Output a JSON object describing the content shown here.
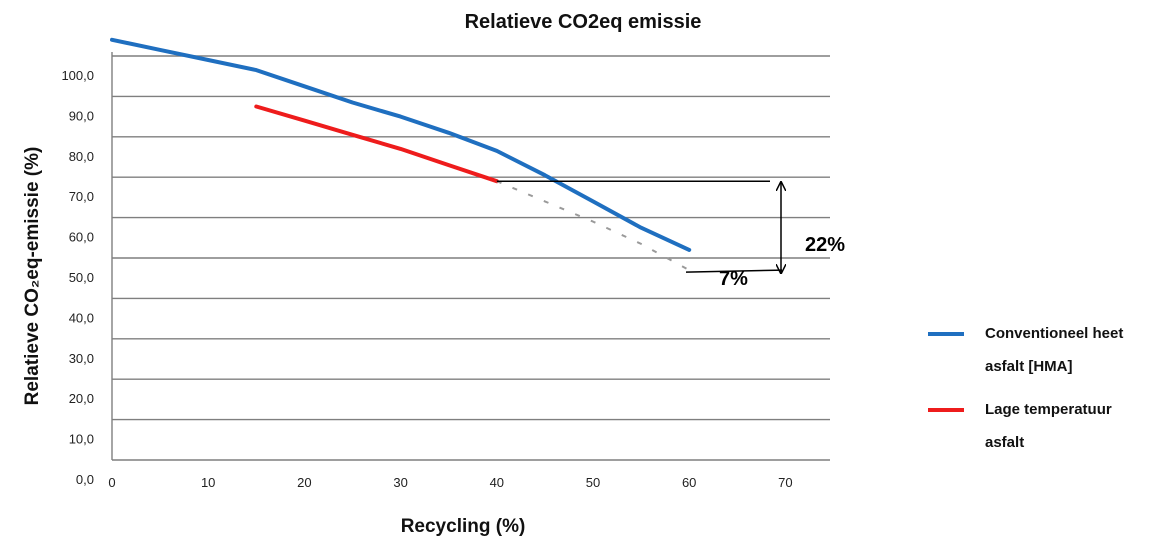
{
  "chart_data": {
    "type": "line",
    "title": "Relatieve CO2eq emissie",
    "xlabel": "Recycling (%)",
    "ylabel": "Relatieve CO₂eq-emissie (%)",
    "xlim": [
      0,
      75
    ],
    "ylim": [
      0,
      105
    ],
    "xticks": [
      0,
      10,
      20,
      30,
      40,
      50,
      60,
      70
    ],
    "xtick_labels": [
      "0",
      "10",
      "20",
      "30",
      "40",
      "50",
      "60",
      "70"
    ],
    "yticks": [
      0,
      10,
      20,
      30,
      40,
      50,
      60,
      70,
      80,
      90,
      100
    ],
    "ytick_labels": [
      "0,0",
      "10,0",
      "20,0",
      "30,0",
      "40,0",
      "50,0",
      "60,0",
      "70,0",
      "80,0",
      "90,0",
      "100,0"
    ],
    "grid": "horizontal",
    "legend_position": "right",
    "series": [
      {
        "name": "Conventioneel heet asfalt [HMA]",
        "color": "#1f6fc0",
        "style": "solid",
        "x": [
          0,
          5,
          10,
          15,
          20,
          25,
          30,
          35,
          40,
          45,
          50,
          55,
          60
        ],
        "y": [
          104,
          101.5,
          99,
          96.5,
          92.5,
          88.5,
          85,
          81,
          76.5,
          70.5,
          64,
          57.5,
          52
        ]
      },
      {
        "name": "Lage temperatuur asfalt",
        "color": "#ee1c1c",
        "style": "solid",
        "x": [
          15,
          20,
          25,
          30,
          35,
          40
        ],
        "y": [
          87.5,
          84,
          80.5,
          77,
          73,
          69
        ]
      },
      {
        "name": "",
        "color": "#9a9a9a",
        "style": "dashed",
        "x": [
          40,
          45,
          50,
          55,
          60
        ],
        "y": [
          69,
          64,
          59,
          53.5,
          47
        ]
      }
    ],
    "annotations": [
      {
        "text": "22%",
        "type": "vertical-arrow",
        "x": 70,
        "y_from": 48,
        "y_to": 67
      },
      {
        "text": "7%",
        "type": "label",
        "x": 65,
        "y": 49
      }
    ]
  }
}
